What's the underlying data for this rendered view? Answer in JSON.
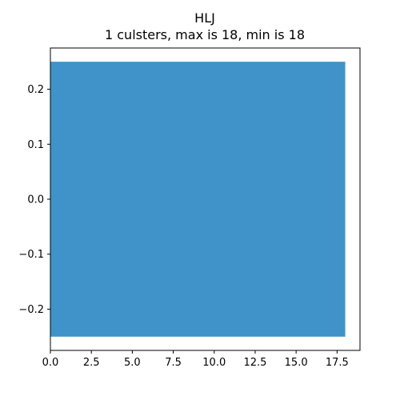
{
  "chart_data": {
    "type": "bar",
    "orientation": "horizontal",
    "title": "HLJ",
    "subtitle": "1 culsters, max is 18, min is 18",
    "xlabel": "",
    "ylabel": "",
    "xlim": [
      0,
      18.9
    ],
    "ylim": [
      -0.275,
      0.275
    ],
    "xticks": [
      0.0,
      2.5,
      5.0,
      7.5,
      10.0,
      12.5,
      15.0,
      17.5
    ],
    "xtick_labels": [
      "0.0",
      "2.5",
      "5.0",
      "7.5",
      "10.0",
      "12.5",
      "15.0",
      "17.5"
    ],
    "yticks": [
      -0.2,
      -0.1,
      0.0,
      0.1,
      0.2
    ],
    "ytick_labels": [
      "−0.2",
      "−0.1",
      "0.0",
      "0.1",
      "0.2"
    ],
    "categories": [
      0
    ],
    "values": [
      18
    ],
    "bar_height": 0.5,
    "color": "#3f93c8",
    "grid": false
  }
}
